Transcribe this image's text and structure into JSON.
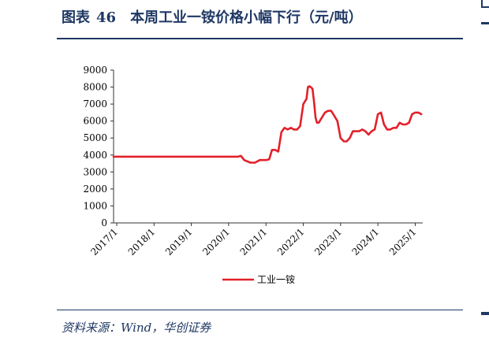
{
  "figure": {
    "label": "图表",
    "number": "46",
    "title": "本周工业一铵价格小幅下行（元/吨）",
    "source": "资料来源：Wind，华创证券"
  },
  "colors": {
    "title": "#1f3864",
    "series": "#e3202a",
    "axis": "#333333"
  },
  "chart_data": {
    "type": "line",
    "title": "",
    "xlabel": "",
    "ylabel": "",
    "ylim": [
      0,
      9000
    ],
    "yticks": [
      0,
      1000,
      2000,
      3000,
      4000,
      5000,
      6000,
      7000,
      8000,
      9000
    ],
    "xlim": [
      "2016-12-01",
      "2025-03-15"
    ],
    "xticks": [
      {
        "date": "2017-01-01",
        "label": "2017/1"
      },
      {
        "date": "2018-01-01",
        "label": "2018/1"
      },
      {
        "date": "2019-01-01",
        "label": "2019/1"
      },
      {
        "date": "2020-01-01",
        "label": "2020/1"
      },
      {
        "date": "2021-01-01",
        "label": "2021/1"
      },
      {
        "date": "2022-01-01",
        "label": "2022/1"
      },
      {
        "date": "2023-01-01",
        "label": "2023/1"
      },
      {
        "date": "2024-01-01",
        "label": "2024/1"
      },
      {
        "date": "2025-01-01",
        "label": "2025/1"
      }
    ],
    "grid": false,
    "legend": "bottom-center",
    "series": [
      {
        "name": "工业一铵",
        "x": [
          "2016-12-01",
          "2017-06-01",
          "2018-01-01",
          "2018-06-01",
          "2019-01-01",
          "2019-06-01",
          "2020-01-01",
          "2020-04-01",
          "2020-05-01",
          "2020-06-01",
          "2020-08-01",
          "2020-09-15",
          "2020-11-01",
          "2021-01-01",
          "2021-02-01",
          "2021-03-01",
          "2021-04-01",
          "2021-05-01",
          "2021-06-01",
          "2021-07-01",
          "2021-08-01",
          "2021-09-01",
          "2021-10-01",
          "2021-11-01",
          "2021-12-01",
          "2022-01-01",
          "2022-02-01",
          "2022-02-15",
          "2022-03-01",
          "2022-03-15",
          "2022-04-01",
          "2022-04-15",
          "2022-05-01",
          "2022-05-15",
          "2022-06-01",
          "2022-07-01",
          "2022-08-01",
          "2022-09-01",
          "2022-10-01",
          "2022-11-01",
          "2022-12-01",
          "2023-01-01",
          "2023-02-01",
          "2023-03-01",
          "2023-04-01",
          "2023-05-01",
          "2023-06-01",
          "2023-07-01",
          "2023-08-01",
          "2023-09-01",
          "2023-10-01",
          "2023-11-01",
          "2023-12-01",
          "2024-01-01",
          "2024-02-01",
          "2024-03-01",
          "2024-04-01",
          "2024-05-01",
          "2024-06-01",
          "2024-07-01",
          "2024-08-01",
          "2024-09-01",
          "2024-10-01",
          "2024-11-01",
          "2024-12-01",
          "2025-01-01",
          "2025-02-01",
          "2025-02-15",
          "2025-03-01"
        ],
        "y": [
          3900,
          3900,
          3900,
          3900,
          3900,
          3900,
          3900,
          3900,
          3950,
          3700,
          3550,
          3550,
          3700,
          3700,
          3750,
          4300,
          4300,
          4200,
          5350,
          5600,
          5500,
          5600,
          5500,
          5500,
          5700,
          7000,
          7300,
          8000,
          8050,
          8000,
          7900,
          7200,
          6200,
          5900,
          5900,
          6200,
          6500,
          6600,
          6600,
          6300,
          6000,
          5000,
          4800,
          4800,
          5000,
          5400,
          5400,
          5400,
          5500,
          5400,
          5200,
          5400,
          5500,
          6400,
          6500,
          5800,
          5500,
          5500,
          5600,
          5600,
          5900,
          5800,
          5800,
          5900,
          6400,
          6500,
          6500,
          6450,
          6400
        ]
      }
    ]
  }
}
